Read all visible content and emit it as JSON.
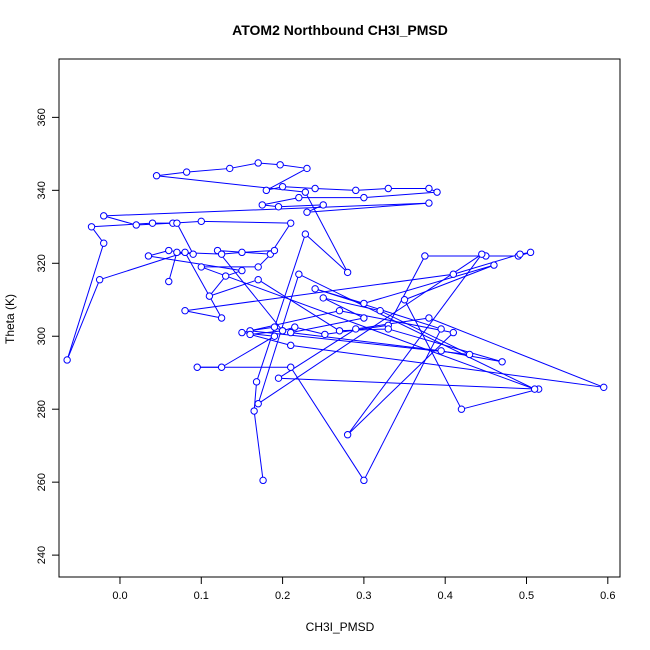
{
  "chart_data": {
    "type": "scatter",
    "title": "ATOM2 Northbound CH3I_PMSD",
    "xlabel": "CH3I_PMSD",
    "ylabel": "Theta (K)",
    "xlim": [
      -0.075,
      0.615
    ],
    "ylim": [
      234,
      376
    ],
    "xticks": [
      "0.0",
      "0.1",
      "0.2",
      "0.3",
      "0.4",
      "0.5",
      "0.6"
    ],
    "yticks": [
      "240",
      "260",
      "280",
      "300",
      "320",
      "340",
      "360"
    ],
    "grid": false,
    "legend": "none",
    "connected": true,
    "marker": "open-circle",
    "color": "#0000ff",
    "points": [
      [
        0.176,
        260.5
      ],
      [
        0.165,
        279.5
      ],
      [
        0.168,
        287.5
      ],
      [
        0.228,
        328.0
      ],
      [
        0.28,
        317.5
      ],
      [
        0.228,
        339.5
      ],
      [
        0.045,
        344.0
      ],
      [
        0.082,
        345.0
      ],
      [
        0.135,
        346.0
      ],
      [
        0.17,
        347.5
      ],
      [
        0.197,
        347.0
      ],
      [
        0.23,
        346.0
      ],
      [
        0.18,
        340.0
      ],
      [
        0.2,
        341.0
      ],
      [
        0.24,
        340.5
      ],
      [
        0.29,
        340.0
      ],
      [
        0.33,
        340.5
      ],
      [
        0.38,
        340.5
      ],
      [
        0.39,
        339.5
      ],
      [
        0.3,
        338.0
      ],
      [
        0.22,
        338.0
      ],
      [
        0.175,
        336.0
      ],
      [
        0.195,
        335.5
      ],
      [
        0.25,
        336.0
      ],
      [
        0.23,
        334.0
      ],
      [
        0.38,
        336.5
      ],
      [
        -0.02,
        333.0
      ],
      [
        0.02,
        330.5
      ],
      [
        0.065,
        331.0
      ],
      [
        0.1,
        331.5
      ],
      [
        0.21,
        331.0
      ],
      [
        0.185,
        322.5
      ],
      [
        0.12,
        323.5
      ],
      [
        0.2,
        301.5
      ],
      [
        0.215,
        302.5
      ],
      [
        0.252,
        300.5
      ],
      [
        0.33,
        303.0
      ],
      [
        0.375,
        322.0
      ],
      [
        0.45,
        322.0
      ],
      [
        0.49,
        322.0
      ],
      [
        0.505,
        323.0
      ],
      [
        0.492,
        322.5
      ],
      [
        0.41,
        317.0
      ],
      [
        0.08,
        307.0
      ],
      [
        0.125,
        305.0
      ],
      [
        0.08,
        323.0
      ],
      [
        -0.025,
        315.5
      ],
      [
        -0.065,
        293.5
      ],
      [
        -0.02,
        325.5
      ],
      [
        -0.035,
        330.0
      ],
      [
        0.04,
        331.0
      ],
      [
        0.07,
        331.0
      ],
      [
        0.09,
        322.5
      ],
      [
        0.06,
        323.5
      ],
      [
        0.035,
        322.0
      ],
      [
        0.15,
        318.0
      ],
      [
        0.13,
        316.5
      ],
      [
        0.11,
        311.0
      ],
      [
        0.17,
        315.5
      ],
      [
        0.27,
        301.5
      ],
      [
        0.33,
        302.0
      ],
      [
        0.47,
        293.0
      ],
      [
        0.395,
        296.0
      ],
      [
        0.21,
        301.0
      ],
      [
        0.3,
        305.0
      ],
      [
        0.25,
        310.5
      ],
      [
        0.32,
        307.0
      ],
      [
        0.43,
        295.0
      ],
      [
        0.16,
        301.5
      ],
      [
        0.19,
        302.5
      ],
      [
        0.2,
        301.5
      ],
      [
        0.16,
        300.5
      ],
      [
        0.21,
        297.5
      ],
      [
        0.595,
        286.0
      ],
      [
        0.38,
        305.0
      ],
      [
        0.29,
        302.0
      ],
      [
        0.195,
        288.5
      ],
      [
        0.515,
        285.5
      ],
      [
        0.42,
        280.0
      ],
      [
        0.35,
        310.0
      ],
      [
        0.46,
        319.5
      ],
      [
        0.3,
        309.0
      ],
      [
        0.24,
        313.0
      ],
      [
        0.395,
        302.0
      ],
      [
        0.3,
        260.5
      ],
      [
        0.21,
        291.5
      ],
      [
        0.095,
        291.5
      ],
      [
        0.125,
        291.5
      ],
      [
        0.19,
        300.0
      ],
      [
        0.15,
        301.0
      ],
      [
        0.27,
        307.0
      ],
      [
        0.41,
        301.0
      ],
      [
        0.28,
        273.0
      ],
      [
        0.445,
        322.5
      ],
      [
        0.17,
        281.5
      ],
      [
        0.22,
        317.0
      ],
      [
        0.51,
        285.5
      ],
      [
        0.1,
        319.0
      ],
      [
        0.17,
        319.0
      ],
      [
        0.19,
        323.5
      ],
      [
        0.15,
        323.0
      ],
      [
        0.125,
        322.5
      ],
      [
        0.07,
        323.0
      ],
      [
        0.06,
        315.0
      ]
    ]
  }
}
